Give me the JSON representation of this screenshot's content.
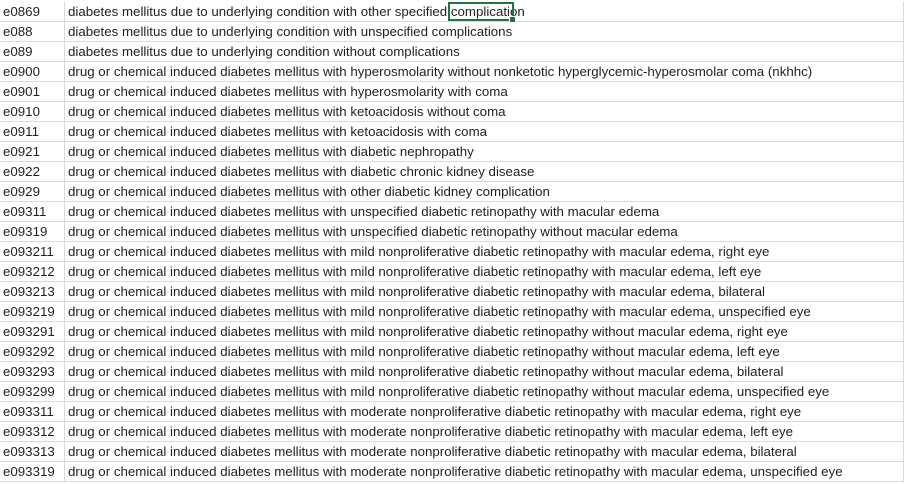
{
  "rows": [
    {
      "code": "e0869",
      "desc": "diabetes mellitus due to underlying condition with other specified complication"
    },
    {
      "code": "e088",
      "desc": "diabetes mellitus due to underlying condition with unspecified complications"
    },
    {
      "code": "e089",
      "desc": "diabetes mellitus due to underlying condition without complications"
    },
    {
      "code": "e0900",
      "desc": "drug or chemical induced diabetes mellitus with hyperosmolarity without nonketotic hyperglycemic-hyperosmolar coma (nkhhc)"
    },
    {
      "code": "e0901",
      "desc": "drug or chemical induced diabetes mellitus with hyperosmolarity with coma"
    },
    {
      "code": "e0910",
      "desc": "drug or chemical induced diabetes mellitus with ketoacidosis without coma"
    },
    {
      "code": "e0911",
      "desc": "drug or chemical induced diabetes mellitus with ketoacidosis with coma"
    },
    {
      "code": "e0921",
      "desc": "drug or chemical induced diabetes mellitus with diabetic nephropathy"
    },
    {
      "code": "e0922",
      "desc": "drug or chemical induced diabetes mellitus with diabetic chronic kidney disease"
    },
    {
      "code": "e0929",
      "desc": "drug or chemical induced diabetes mellitus with other diabetic kidney complication"
    },
    {
      "code": "e09311",
      "desc": "drug or chemical induced diabetes mellitus with unspecified diabetic retinopathy with macular edema"
    },
    {
      "code": "e09319",
      "desc": "drug or chemical induced diabetes mellitus with unspecified diabetic retinopathy without macular edema"
    },
    {
      "code": "e093211",
      "desc": "drug or chemical induced diabetes mellitus with mild nonproliferative diabetic retinopathy with macular edema, right eye"
    },
    {
      "code": "e093212",
      "desc": "drug or chemical induced diabetes mellitus with mild nonproliferative diabetic retinopathy with macular edema, left eye"
    },
    {
      "code": "e093213",
      "desc": "drug or chemical induced diabetes mellitus with mild nonproliferative diabetic retinopathy with macular edema, bilateral"
    },
    {
      "code": "e093219",
      "desc": "drug or chemical induced diabetes mellitus with mild nonproliferative diabetic retinopathy with macular edema, unspecified eye"
    },
    {
      "code": "e093291",
      "desc": "drug or chemical induced diabetes mellitus with mild nonproliferative diabetic retinopathy without macular edema, right eye"
    },
    {
      "code": "e093292",
      "desc": "drug or chemical induced diabetes mellitus with mild nonproliferative diabetic retinopathy without macular edema, left eye"
    },
    {
      "code": "e093293",
      "desc": "drug or chemical induced diabetes mellitus with mild nonproliferative diabetic retinopathy without macular edema, bilateral"
    },
    {
      "code": "e093299",
      "desc": "drug or chemical induced diabetes mellitus with mild nonproliferative diabetic retinopathy without macular edema, unspecified eye"
    },
    {
      "code": "e093311",
      "desc": "drug or chemical induced diabetes mellitus with moderate nonproliferative diabetic retinopathy with macular edema, right eye"
    },
    {
      "code": "e093312",
      "desc": "drug or chemical induced diabetes mellitus with moderate nonproliferative diabetic retinopathy with macular edema, left eye"
    },
    {
      "code": "e093313",
      "desc": "drug or chemical induced diabetes mellitus with moderate nonproliferative diabetic retinopathy with macular edema, bilateral"
    },
    {
      "code": "e093319",
      "desc": "drug or chemical induced diabetes mellitus with moderate nonproliferative diabetic retinopathy with macular edema, unspecified eye"
    }
  ]
}
